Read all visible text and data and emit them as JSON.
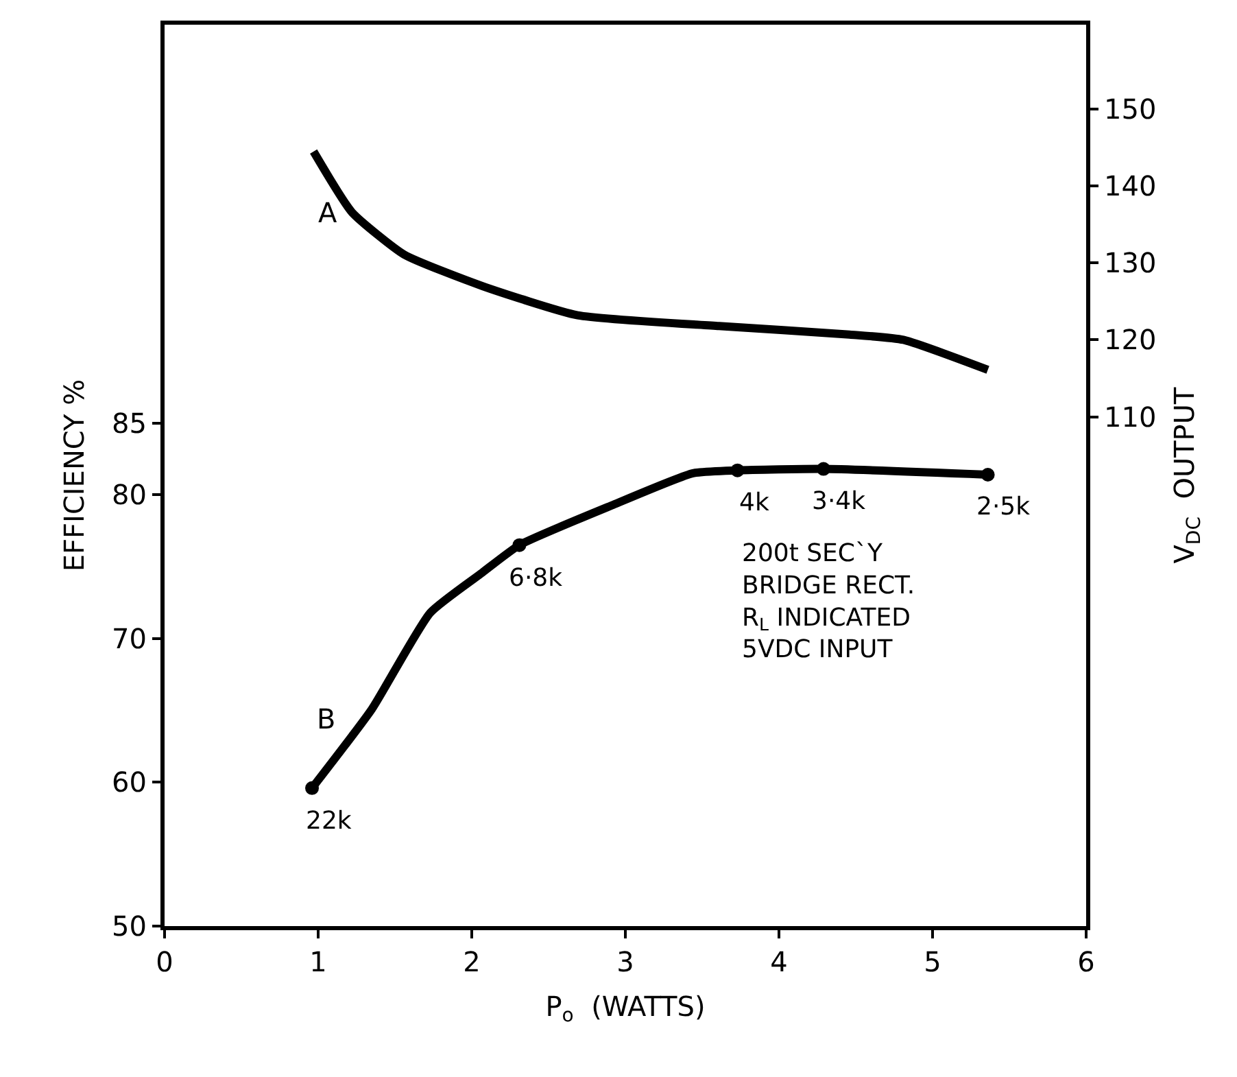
{
  "chart_data": {
    "type": "line",
    "xlabel": "P$_{o}$  (WATTS)",
    "ylabel": "EFFICIENCY %",
    "y2label": "V$_{DC}$  OUTPUT",
    "xlim": [
      0,
      6
    ],
    "xticks": [
      0,
      1,
      2,
      3,
      4,
      5,
      6
    ],
    "ylim": [
      50,
      112.7
    ],
    "yticks": [
      50,
      60,
      70,
      80,
      85
    ],
    "y2lim": [
      43.75,
      161
    ],
    "y2ticks": [
      110,
      120,
      130,
      140,
      150
    ],
    "line_style": "solid",
    "series": [
      {
        "name": "A",
        "color": "#000000",
        "axis": "y2",
        "x": [
          0.97,
          1.22,
          1.56,
          2.07,
          2.69,
          3.61,
          4.46,
          4.81,
          5.36
        ],
        "values": [
          144.5,
          136.6,
          131.1,
          127.0,
          123.2,
          121.8,
          120.7,
          120.0,
          116.1
        ]
      },
      {
        "name": "B",
        "color": "#000000",
        "x": [
          0.96,
          1.35,
          1.73,
          2.07,
          2.31,
          2.92,
          3.44,
          3.73,
          4.29,
          5.36
        ],
        "values": [
          59.6,
          65.1,
          71.8,
          74.6,
          76.5,
          79.3,
          81.5,
          81.7,
          81.8,
          81.4
        ]
      },
      {
        "type": "scatter",
        "marker": "circle",
        "color": "#000000",
        "x": [
          0.96,
          2.31,
          3.73,
          4.29,
          5.36
        ],
        "values": [
          59.6,
          76.5,
          81.7,
          81.8,
          81.4
        ]
      }
    ],
    "annotations": [
      {
        "text": "22k",
        "x": 0.96,
        "y": 59.6
      },
      {
        "text": "6·8k",
        "x": 2.31,
        "y": 76.5
      },
      {
        "text": "4k",
        "x": 3.73,
        "y": 81.7
      },
      {
        "text": "3·4k",
        "x": 4.29,
        "y": 81.8
      },
      {
        "text": "2·5k",
        "x": 5.36,
        "y": 81.4
      },
      "200t SEC`Y\nBRIDGE RECT.\nR$_{L}$ INDICATED\n5VDC INPUT"
    ]
  }
}
